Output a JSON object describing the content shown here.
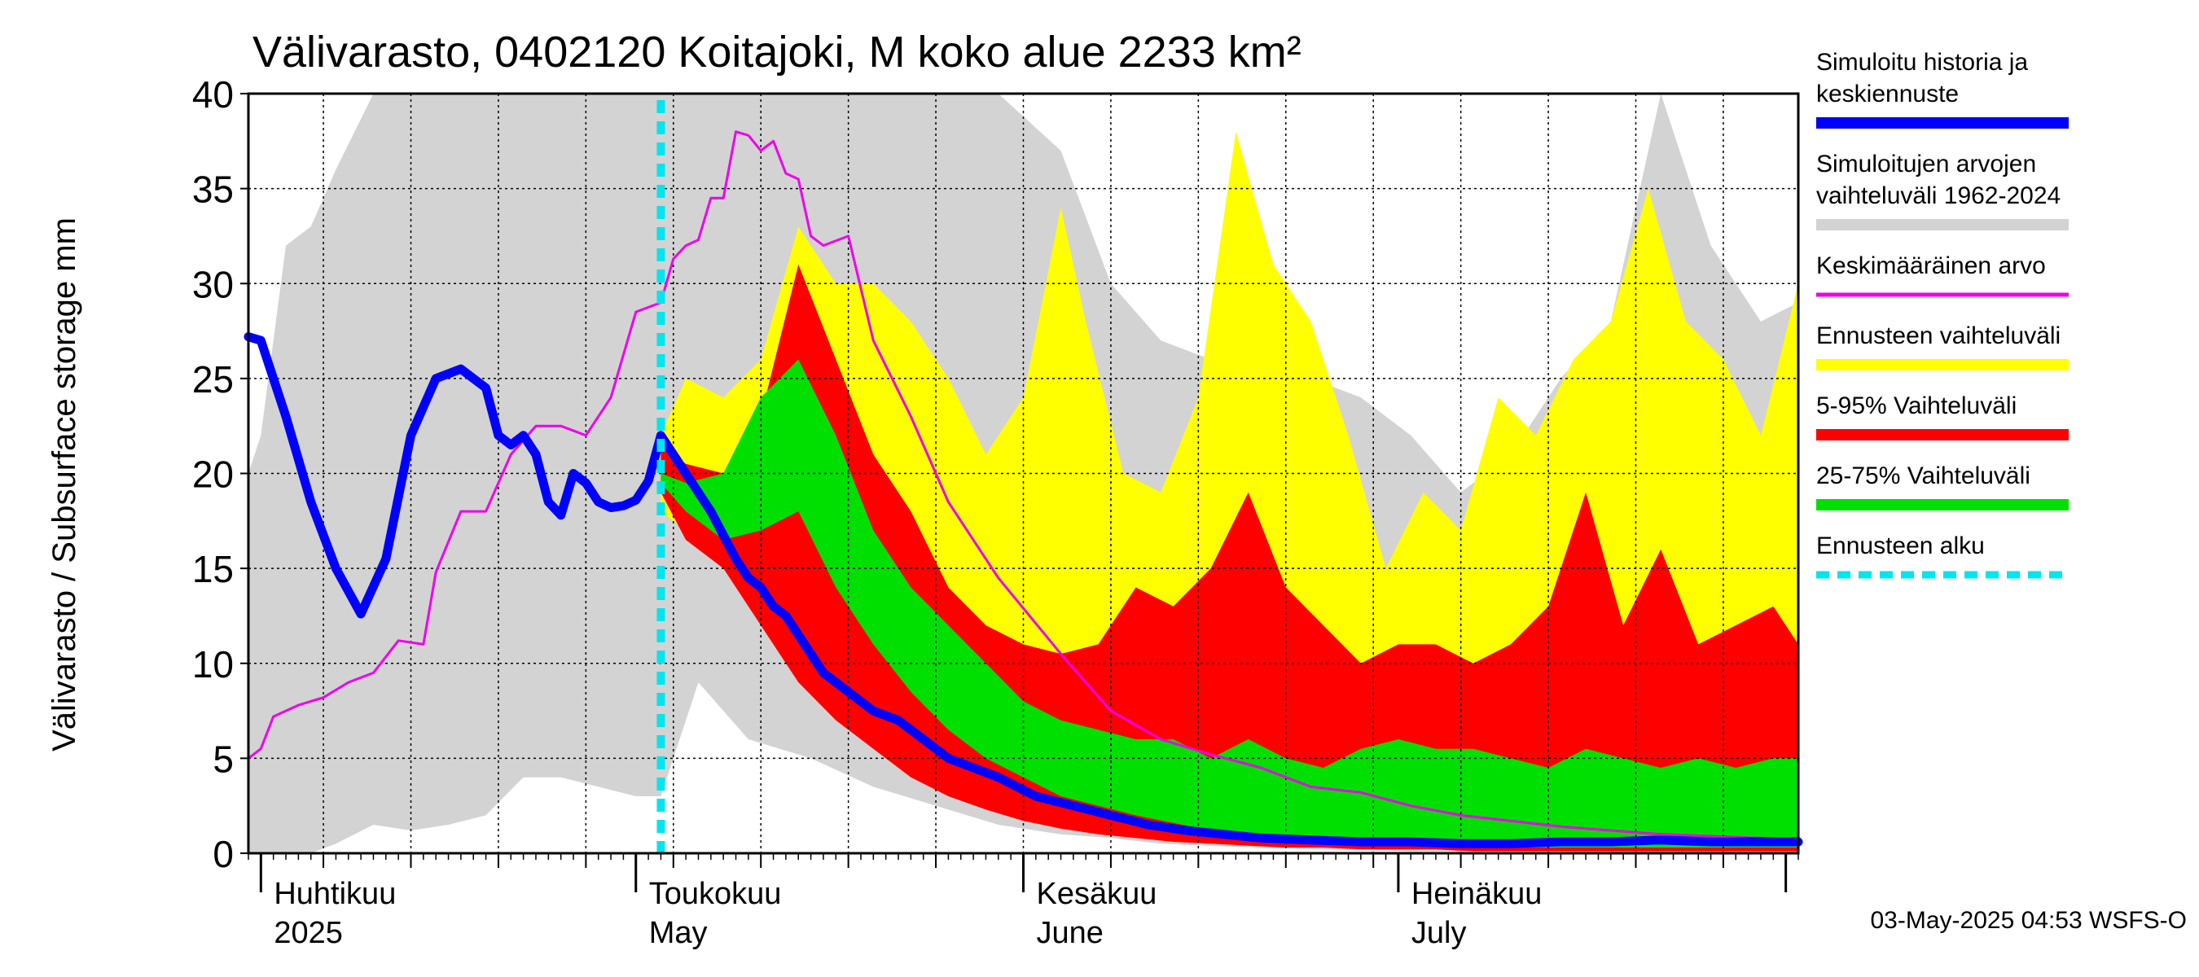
{
  "chart_data": {
    "type": "area",
    "title": "Välivarasto, 0402120 Koitajoki, M koko alue 2233 km²",
    "ylabel": "Välivarasto / Subsurface storage  mm",
    "ylim": [
      0,
      40
    ],
    "y_ticks": [
      0,
      5,
      10,
      15,
      20,
      25,
      30,
      35,
      40
    ],
    "grid": true,
    "legend_position": "right",
    "x_start_date": "2025-03-31",
    "x_end_date": "2025-08-02",
    "forecast_start_date": "2025-05-03",
    "month_labels": [
      {
        "date": "2025-04-01",
        "fi": "Huhtikuu",
        "en": "2025"
      },
      {
        "date": "2025-05-01",
        "fi": "Toukokuu",
        "en": "May"
      },
      {
        "date": "2025-06-01",
        "fi": "Kesäkuu",
        "en": "June"
      },
      {
        "date": "2025-07-01",
        "fi": "Heinäkuu",
        "en": "July"
      }
    ],
    "timestamp": "03-May-2025 04:53 WSFS-O",
    "legend": [
      {
        "label": "Simuloitu historia ja keskiennuste",
        "color": "#0000ff",
        "style": "thick"
      },
      {
        "label": "Simuloitujen arvojen vaihteluväli 1962-2024",
        "color": "#d3d3d3",
        "style": "thick"
      },
      {
        "label": "Keskimääräinen arvo",
        "color": "#ee00ee",
        "style": "thin"
      },
      {
        "label": "Ennusteen vaihteluväli",
        "color": "#ffff00",
        "style": "thick"
      },
      {
        "label": "5-95% Vaihteluväli",
        "color": "#ff0000",
        "style": "thick"
      },
      {
        "label": "25-75% Vaihteluväli",
        "color": "#00e000",
        "style": "thick"
      },
      {
        "label": "Ennusteen alku",
        "color": "#00e5ee",
        "style": "dashed"
      }
    ],
    "series": [
      {
        "name": "Simuloitujen arvojen vaihteluväli 1962-2024",
        "kind": "band",
        "color": "#d3d3d3",
        "dates": [
          "2025-03-31",
          "2025-04-01",
          "2025-04-03",
          "2025-04-05",
          "2025-04-07",
          "2025-04-10",
          "2025-04-13",
          "2025-04-16",
          "2025-04-19",
          "2025-04-22",
          "2025-04-25",
          "2025-04-28",
          "2025-05-01",
          "2025-05-03",
          "2025-05-06",
          "2025-05-10",
          "2025-05-15",
          "2025-05-20",
          "2025-05-25",
          "2025-05-30",
          "2025-06-04",
          "2025-06-08",
          "2025-06-12",
          "2025-06-16",
          "2025-06-20",
          "2025-06-24",
          "2025-06-28",
          "2025-07-02",
          "2025-07-06",
          "2025-07-10",
          "2025-07-14",
          "2025-07-18",
          "2025-07-22",
          "2025-07-26",
          "2025-07-30",
          "2025-08-02"
        ],
        "low": [
          0,
          0,
          0,
          0,
          0.5,
          1.5,
          1.2,
          1.5,
          2,
          4,
          4,
          3.5,
          3,
          3,
          9,
          6,
          5,
          3.5,
          2.5,
          1.5,
          1,
          0.8,
          0.5,
          0.4,
          0.3,
          0.2,
          0.2,
          0.1,
          0.1,
          0.1,
          0.1,
          0,
          0,
          0,
          0,
          0
        ],
        "high": [
          20,
          22,
          32,
          33,
          36,
          40,
          40,
          40,
          40,
          40,
          40,
          40,
          40,
          40,
          40,
          40,
          40,
          40,
          40,
          40,
          37,
          30,
          27,
          26,
          30,
          25,
          24,
          22,
          19,
          21,
          25,
          28,
          40,
          32,
          28,
          29
        ]
      },
      {
        "name": "Ennusteen vaihteluväli",
        "kind": "band",
        "color": "#ffff00",
        "dates": [
          "2025-05-03",
          "2025-05-05",
          "2025-05-08",
          "2025-05-11",
          "2025-05-14",
          "2025-05-17",
          "2025-05-20",
          "2025-05-23",
          "2025-05-26",
          "2025-05-29",
          "2025-06-01",
          "2025-06-04",
          "2025-06-06",
          "2025-06-09",
          "2025-06-12",
          "2025-06-15",
          "2025-06-18",
          "2025-06-21",
          "2025-06-24",
          "2025-06-27",
          "2025-06-30",
          "2025-07-03",
          "2025-07-06",
          "2025-07-09",
          "2025-07-12",
          "2025-07-15",
          "2025-07-18",
          "2025-07-21",
          "2025-07-24",
          "2025-07-27",
          "2025-07-30",
          "2025-08-02"
        ],
        "low": [
          18,
          17,
          15,
          13,
          11,
          9.5,
          8,
          6.5,
          5.5,
          4.5,
          3.5,
          3,
          2.5,
          2,
          1.6,
          1.3,
          1,
          0.9,
          0.7,
          0.6,
          0.5,
          0.4,
          0.4,
          0.3,
          0.3,
          0.2,
          0.2,
          0.2,
          0.1,
          0.1,
          0.1,
          0.1
        ],
        "high": [
          22,
          25,
          24,
          26,
          33,
          30,
          30,
          28,
          25,
          21,
          24,
          34,
          28,
          20,
          19,
          24,
          38,
          31,
          28,
          22,
          15,
          19,
          17,
          24,
          22,
          26,
          28,
          35,
          28,
          26,
          22,
          30
        ]
      },
      {
        "name": "5-95% Vaihteluväli",
        "kind": "band",
        "color": "#ff0000",
        "dates": [
          "2025-05-03",
          "2025-05-05",
          "2025-05-08",
          "2025-05-11",
          "2025-05-14",
          "2025-05-17",
          "2025-05-20",
          "2025-05-23",
          "2025-05-26",
          "2025-05-29",
          "2025-06-01",
          "2025-06-04",
          "2025-06-07",
          "2025-06-10",
          "2025-06-13",
          "2025-06-16",
          "2025-06-19",
          "2025-06-22",
          "2025-06-25",
          "2025-06-28",
          "2025-07-01",
          "2025-07-04",
          "2025-07-07",
          "2025-07-10",
          "2025-07-13",
          "2025-07-16",
          "2025-07-19",
          "2025-07-22",
          "2025-07-25",
          "2025-07-28",
          "2025-07-31",
          "2025-08-02"
        ],
        "low": [
          19,
          16.5,
          15,
          12,
          9,
          7,
          5.5,
          4,
          3,
          2.3,
          1.7,
          1.3,
          1,
          0.8,
          0.6,
          0.5,
          0.4,
          0.3,
          0.3,
          0.2,
          0.2,
          0.2,
          0.1,
          0.1,
          0.1,
          0.1,
          0.1,
          0.1,
          0.1,
          0.1,
          0.1,
          0.1
        ],
        "high": [
          21.5,
          20.5,
          20,
          23,
          31,
          26,
          21,
          18,
          14,
          12,
          11,
          10.5,
          11,
          14,
          13,
          15,
          19,
          14,
          12,
          10,
          11,
          11,
          10,
          11,
          13,
          19,
          12,
          16,
          11,
          12,
          13,
          11
        ]
      },
      {
        "name": "25-75% Vaihteluväli",
        "kind": "band",
        "color": "#00e000",
        "dates": [
          "2025-05-03",
          "2025-05-05",
          "2025-05-08",
          "2025-05-11",
          "2025-05-14",
          "2025-05-17",
          "2025-05-20",
          "2025-05-23",
          "2025-05-26",
          "2025-05-29",
          "2025-06-01",
          "2025-06-04",
          "2025-06-07",
          "2025-06-10",
          "2025-06-13",
          "2025-06-16",
          "2025-06-19",
          "2025-06-22",
          "2025-06-25",
          "2025-06-28",
          "2025-07-01",
          "2025-07-04",
          "2025-07-07",
          "2025-07-10",
          "2025-07-13",
          "2025-07-16",
          "2025-07-19",
          "2025-07-22",
          "2025-07-25",
          "2025-07-28",
          "2025-07-31",
          "2025-08-02"
        ],
        "low": [
          19.5,
          18,
          16.5,
          17,
          18,
          14,
          11,
          8.5,
          6.5,
          5,
          4,
          3,
          2.5,
          2,
          1.6,
          1.2,
          1,
          0.8,
          0.6,
          0.5,
          0.4,
          0.4,
          0.3,
          0.3,
          0.3,
          0.3,
          0.3,
          0.3,
          0.3,
          0.3,
          0.3,
          0.3
        ],
        "high": [
          20,
          19.5,
          20,
          24,
          26,
          22,
          17,
          14,
          12,
          10,
          8,
          7,
          6.5,
          6,
          6,
          5,
          6,
          5,
          4.5,
          5.5,
          6,
          5.5,
          5.5,
          5,
          4.5,
          5.5,
          5,
          4.5,
          5,
          4.5,
          5,
          5
        ]
      },
      {
        "name": "Keskimääräinen arvo",
        "kind": "line",
        "color": "#ee00ee",
        "width": 3,
        "dates": [
          "2025-03-31",
          "2025-04-01",
          "2025-04-02",
          "2025-04-04",
          "2025-04-06",
          "2025-04-08",
          "2025-04-10",
          "2025-04-12",
          "2025-04-14",
          "2025-04-15",
          "2025-04-17",
          "2025-04-19",
          "2025-04-21",
          "2025-04-23",
          "2025-04-25",
          "2025-04-27",
          "2025-04-29",
          "2025-05-01",
          "2025-05-03",
          "2025-05-04",
          "2025-05-05",
          "2025-05-06",
          "2025-05-07",
          "2025-05-08",
          "2025-05-09",
          "2025-05-10",
          "2025-05-11",
          "2025-05-12",
          "2025-05-13",
          "2025-05-14",
          "2025-05-15",
          "2025-05-16",
          "2025-05-18",
          "2025-05-20",
          "2025-05-23",
          "2025-05-26",
          "2025-05-30",
          "2025-06-04",
          "2025-06-08",
          "2025-06-12",
          "2025-06-16",
          "2025-06-20",
          "2025-06-24",
          "2025-06-28",
          "2025-07-02",
          "2025-07-06",
          "2025-07-10",
          "2025-07-14",
          "2025-07-18",
          "2025-07-22",
          "2025-07-26",
          "2025-07-30",
          "2025-08-02"
        ],
        "values": [
          5,
          5.5,
          7.2,
          7.8,
          8.2,
          9,
          9.5,
          11.2,
          11,
          14.8,
          18,
          18,
          21,
          22.5,
          22.5,
          22,
          24,
          28.5,
          29,
          31.3,
          32,
          32.3,
          34.5,
          34.5,
          38,
          37.8,
          37,
          37.5,
          35.8,
          35.5,
          32.5,
          32,
          32.5,
          27,
          23,
          18.5,
          14.5,
          10.5,
          7.5,
          6,
          5.2,
          4.5,
          3.5,
          3.2,
          2.5,
          2,
          1.7,
          1.4,
          1.2,
          1,
          0.9,
          0.8,
          0.7
        ]
      },
      {
        "name": "Simuloitu historia ja keskiennuste",
        "kind": "line",
        "color": "#0000ff",
        "width": 11,
        "dates": [
          "2025-03-31",
          "2025-04-01",
          "2025-04-03",
          "2025-04-05",
          "2025-04-07",
          "2025-04-09",
          "2025-04-11",
          "2025-04-13",
          "2025-04-15",
          "2025-04-17",
          "2025-04-19",
          "2025-04-20",
          "2025-04-21",
          "2025-04-22",
          "2025-04-23",
          "2025-04-24",
          "2025-04-25",
          "2025-04-26",
          "2025-04-27",
          "2025-04-28",
          "2025-04-29",
          "2025-04-30",
          "2025-05-01",
          "2025-05-02",
          "2025-05-03",
          "2025-05-05",
          "2025-05-07",
          "2025-05-09",
          "2025-05-10",
          "2025-05-11",
          "2025-05-12",
          "2025-05-13",
          "2025-05-14",
          "2025-05-15",
          "2025-05-16",
          "2025-05-18",
          "2025-05-20",
          "2025-05-22",
          "2025-05-24",
          "2025-05-26",
          "2025-05-28",
          "2025-05-30",
          "2025-06-02",
          "2025-06-05",
          "2025-06-08",
          "2025-06-11",
          "2025-06-14",
          "2025-06-17",
          "2025-06-20",
          "2025-06-24",
          "2025-06-28",
          "2025-07-02",
          "2025-07-06",
          "2025-07-10",
          "2025-07-14",
          "2025-07-18",
          "2025-07-22",
          "2025-07-26",
          "2025-07-30",
          "2025-08-02"
        ],
        "values": [
          27.2,
          27,
          23,
          18.5,
          15,
          12.6,
          15.5,
          22,
          25,
          25.5,
          24.5,
          22,
          21.5,
          22,
          21,
          18.5,
          17.8,
          20,
          19.5,
          18.5,
          18.2,
          18.3,
          18.6,
          19.6,
          22,
          20,
          18,
          15.5,
          14.5,
          14,
          13,
          12.5,
          11.5,
          10.5,
          9.5,
          8.5,
          7.5,
          7,
          6,
          5,
          4.5,
          4,
          3,
          2.5,
          2,
          1.5,
          1.2,
          1,
          0.8,
          0.7,
          0.6,
          0.6,
          0.5,
          0.5,
          0.6,
          0.6,
          0.7,
          0.6,
          0.6,
          0.6
        ]
      }
    ]
  }
}
